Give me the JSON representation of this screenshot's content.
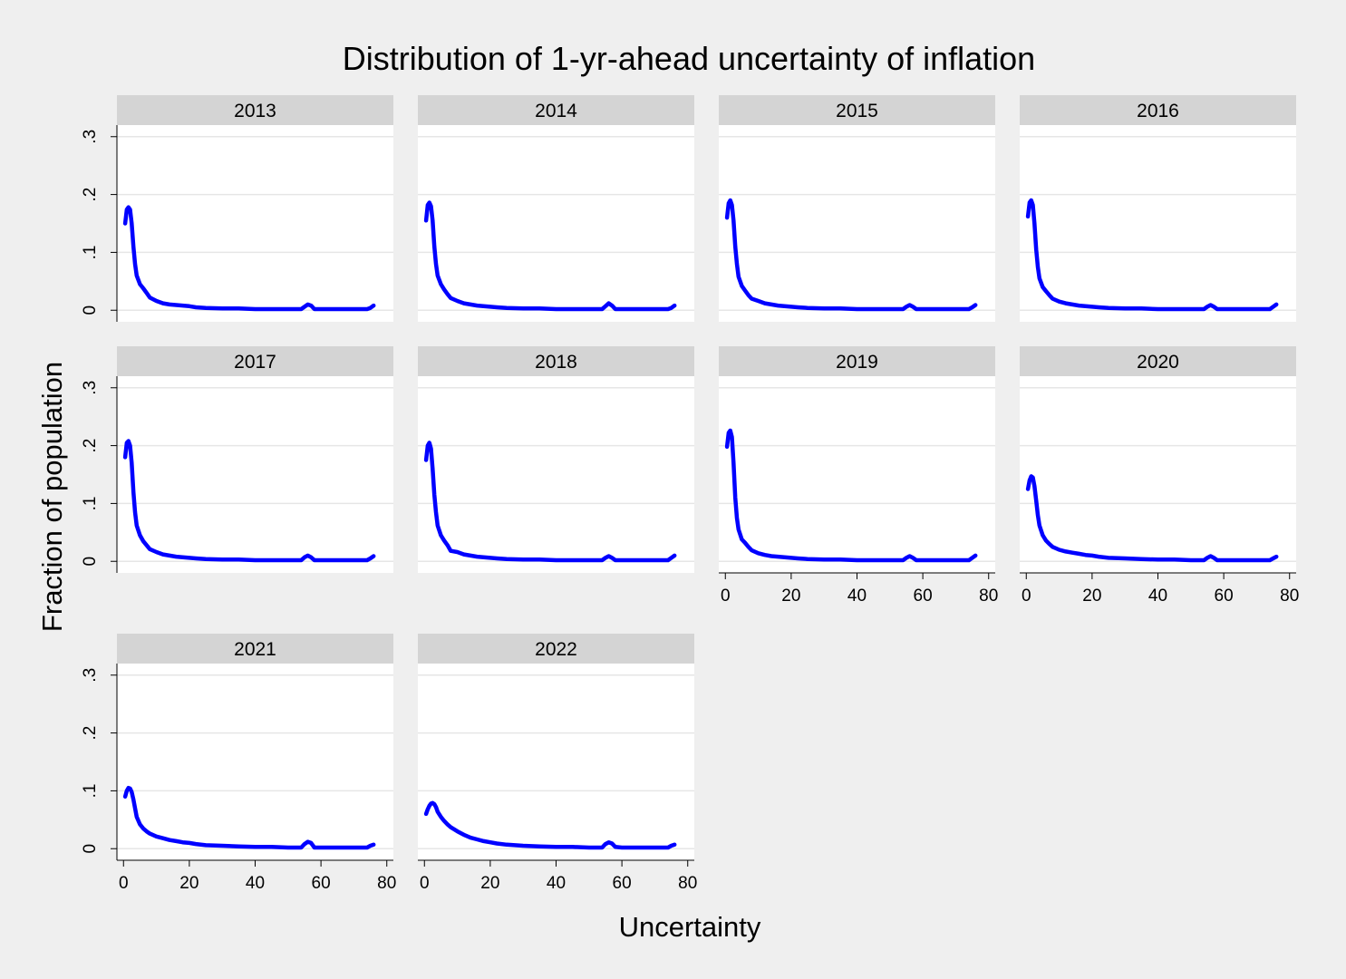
{
  "chart_data": {
    "type": "line",
    "title": "Distribution of 1-yr-ahead uncertainty of inflation",
    "xlabel": "Uncertainty",
    "ylabel": "Fraction of population",
    "xlim": [
      -2,
      82
    ],
    "ylim": [
      -0.02,
      0.32
    ],
    "x_ticks": [
      0,
      20,
      40,
      60,
      80
    ],
    "y_ticks": [
      0,
      0.1,
      0.2,
      0.3
    ],
    "y_tick_labels": [
      "0",
      ".1",
      ".2",
      ".3"
    ],
    "grid": true,
    "line_color": "#0000ff",
    "panels": [
      {
        "label": "2013",
        "x": [
          0.5,
          1,
          1.5,
          2,
          2.5,
          3,
          3.5,
          4,
          5,
          6,
          7,
          8,
          10,
          12,
          14,
          16,
          18,
          20,
          22,
          25,
          30,
          35,
          40,
          45,
          50,
          54,
          55,
          56,
          57,
          58,
          60,
          65,
          70,
          74,
          75,
          76
        ],
        "y": [
          0.15,
          0.174,
          0.178,
          0.174,
          0.15,
          0.11,
          0.08,
          0.06,
          0.045,
          0.038,
          0.03,
          0.022,
          0.016,
          0.012,
          0.01,
          0.009,
          0.008,
          0.007,
          0.005,
          0.004,
          0.003,
          0.003,
          0.002,
          0.002,
          0.002,
          0.002,
          0.006,
          0.01,
          0.008,
          0.002,
          0.002,
          0.002,
          0.002,
          0.002,
          0.004,
          0.008
        ]
      },
      {
        "label": "2014",
        "x": [
          0.5,
          1,
          1.5,
          2,
          2.5,
          3,
          3.5,
          4,
          5,
          6,
          7,
          8,
          10,
          12,
          14,
          16,
          18,
          20,
          22,
          25,
          30,
          35,
          40,
          45,
          50,
          54,
          55,
          56,
          57,
          58,
          60,
          65,
          70,
          74,
          75,
          76
        ],
        "y": [
          0.155,
          0.182,
          0.186,
          0.18,
          0.155,
          0.11,
          0.08,
          0.06,
          0.045,
          0.036,
          0.028,
          0.021,
          0.016,
          0.012,
          0.01,
          0.008,
          0.007,
          0.006,
          0.005,
          0.004,
          0.003,
          0.003,
          0.002,
          0.002,
          0.002,
          0.002,
          0.007,
          0.012,
          0.008,
          0.002,
          0.002,
          0.002,
          0.002,
          0.002,
          0.004,
          0.008
        ]
      },
      {
        "label": "2015",
        "x": [
          0.5,
          1,
          1.5,
          2,
          2.5,
          3,
          3.5,
          4,
          5,
          6,
          7,
          8,
          10,
          12,
          14,
          16,
          18,
          20,
          22,
          25,
          30,
          35,
          40,
          45,
          50,
          54,
          55,
          56,
          57,
          58,
          60,
          65,
          70,
          74,
          75,
          76
        ],
        "y": [
          0.16,
          0.185,
          0.19,
          0.182,
          0.155,
          0.11,
          0.08,
          0.058,
          0.042,
          0.034,
          0.026,
          0.02,
          0.016,
          0.012,
          0.01,
          0.008,
          0.007,
          0.006,
          0.005,
          0.004,
          0.003,
          0.003,
          0.002,
          0.002,
          0.002,
          0.002,
          0.006,
          0.009,
          0.006,
          0.002,
          0.002,
          0.002,
          0.002,
          0.002,
          0.005,
          0.009
        ]
      },
      {
        "label": "2016",
        "x": [
          0.5,
          1,
          1.5,
          2,
          2.5,
          3,
          3.5,
          4,
          5,
          6,
          7,
          8,
          10,
          12,
          14,
          16,
          18,
          20,
          22,
          25,
          30,
          35,
          40,
          45,
          50,
          54,
          55,
          56,
          57,
          58,
          60,
          65,
          70,
          74,
          75,
          76
        ],
        "y": [
          0.162,
          0.186,
          0.19,
          0.182,
          0.15,
          0.105,
          0.075,
          0.055,
          0.04,
          0.033,
          0.026,
          0.02,
          0.015,
          0.012,
          0.01,
          0.008,
          0.007,
          0.006,
          0.005,
          0.004,
          0.003,
          0.003,
          0.002,
          0.002,
          0.002,
          0.002,
          0.006,
          0.009,
          0.006,
          0.002,
          0.002,
          0.002,
          0.002,
          0.002,
          0.006,
          0.01
        ]
      },
      {
        "label": "2017",
        "x": [
          0.5,
          1,
          1.5,
          2,
          2.5,
          3,
          3.5,
          4,
          5,
          6,
          7,
          8,
          10,
          12,
          14,
          16,
          18,
          20,
          22,
          25,
          30,
          35,
          40,
          45,
          50,
          54,
          55,
          56,
          57,
          58,
          60,
          65,
          70,
          74,
          75,
          76
        ],
        "y": [
          0.18,
          0.205,
          0.208,
          0.2,
          0.17,
          0.12,
          0.085,
          0.062,
          0.045,
          0.035,
          0.028,
          0.021,
          0.016,
          0.012,
          0.01,
          0.008,
          0.007,
          0.006,
          0.005,
          0.004,
          0.003,
          0.003,
          0.002,
          0.002,
          0.002,
          0.002,
          0.007,
          0.01,
          0.007,
          0.002,
          0.002,
          0.002,
          0.002,
          0.002,
          0.005,
          0.009
        ]
      },
      {
        "label": "2018",
        "x": [
          0.5,
          1,
          1.5,
          2,
          2.5,
          3,
          3.5,
          4,
          5,
          6,
          7,
          8,
          10,
          12,
          14,
          16,
          18,
          20,
          22,
          25,
          30,
          35,
          40,
          45,
          50,
          54,
          55,
          56,
          57,
          58,
          60,
          65,
          70,
          74,
          75,
          76
        ],
        "y": [
          0.175,
          0.2,
          0.205,
          0.195,
          0.16,
          0.115,
          0.085,
          0.062,
          0.045,
          0.036,
          0.028,
          0.018,
          0.016,
          0.012,
          0.01,
          0.008,
          0.007,
          0.006,
          0.005,
          0.004,
          0.003,
          0.003,
          0.002,
          0.002,
          0.002,
          0.002,
          0.006,
          0.009,
          0.006,
          0.002,
          0.002,
          0.002,
          0.002,
          0.002,
          0.006,
          0.01
        ]
      },
      {
        "label": "2019",
        "x": [
          0.5,
          1,
          1.5,
          2,
          2.5,
          3,
          3.5,
          4,
          5,
          6,
          7,
          8,
          10,
          12,
          14,
          16,
          18,
          20,
          22,
          25,
          30,
          35,
          40,
          45,
          50,
          54,
          55,
          56,
          57,
          58,
          60,
          65,
          70,
          74,
          75,
          76
        ],
        "y": [
          0.198,
          0.222,
          0.226,
          0.215,
          0.17,
          0.11,
          0.075,
          0.055,
          0.038,
          0.032,
          0.025,
          0.019,
          0.014,
          0.011,
          0.009,
          0.008,
          0.007,
          0.006,
          0.005,
          0.004,
          0.003,
          0.003,
          0.002,
          0.002,
          0.002,
          0.002,
          0.006,
          0.009,
          0.006,
          0.002,
          0.002,
          0.002,
          0.002,
          0.002,
          0.006,
          0.01
        ]
      },
      {
        "label": "2020",
        "x": [
          0.5,
          1,
          1.5,
          2,
          2.5,
          3,
          3.5,
          4,
          5,
          6,
          7,
          8,
          10,
          12,
          14,
          16,
          18,
          20,
          22,
          25,
          30,
          35,
          40,
          45,
          50,
          54,
          55,
          56,
          57,
          58,
          60,
          65,
          70,
          74,
          75,
          76
        ],
        "y": [
          0.125,
          0.14,
          0.147,
          0.145,
          0.13,
          0.105,
          0.08,
          0.062,
          0.045,
          0.036,
          0.03,
          0.025,
          0.02,
          0.017,
          0.015,
          0.013,
          0.011,
          0.01,
          0.008,
          0.006,
          0.005,
          0.004,
          0.003,
          0.003,
          0.002,
          0.002,
          0.006,
          0.009,
          0.006,
          0.002,
          0.002,
          0.002,
          0.002,
          0.002,
          0.005,
          0.008
        ]
      },
      {
        "label": "2021",
        "x": [
          0.5,
          1,
          1.5,
          2,
          2.5,
          3,
          3.5,
          4,
          5,
          6,
          7,
          8,
          10,
          12,
          14,
          16,
          18,
          20,
          22,
          25,
          30,
          35,
          40,
          45,
          50,
          54,
          55,
          56,
          57,
          58,
          60,
          65,
          70,
          74,
          75,
          76
        ],
        "y": [
          0.09,
          0.1,
          0.105,
          0.104,
          0.098,
          0.085,
          0.07,
          0.055,
          0.042,
          0.035,
          0.03,
          0.026,
          0.021,
          0.018,
          0.015,
          0.013,
          0.011,
          0.01,
          0.008,
          0.006,
          0.005,
          0.004,
          0.003,
          0.003,
          0.002,
          0.002,
          0.008,
          0.012,
          0.01,
          0.002,
          0.002,
          0.002,
          0.002,
          0.002,
          0.005,
          0.007
        ]
      },
      {
        "label": "2022",
        "x": [
          0.5,
          1,
          1.5,
          2,
          2.5,
          3,
          3.5,
          4,
          5,
          6,
          7,
          8,
          10,
          12,
          14,
          16,
          18,
          20,
          22,
          25,
          30,
          35,
          40,
          45,
          50,
          54,
          55,
          56,
          57,
          58,
          60,
          65,
          70,
          74,
          75,
          76
        ],
        "y": [
          0.06,
          0.068,
          0.074,
          0.078,
          0.079,
          0.077,
          0.072,
          0.064,
          0.055,
          0.048,
          0.042,
          0.037,
          0.03,
          0.024,
          0.019,
          0.016,
          0.013,
          0.011,
          0.009,
          0.007,
          0.005,
          0.004,
          0.003,
          0.003,
          0.002,
          0.002,
          0.008,
          0.011,
          0.009,
          0.003,
          0.002,
          0.002,
          0.002,
          0.002,
          0.005,
          0.007
        ]
      }
    ]
  }
}
